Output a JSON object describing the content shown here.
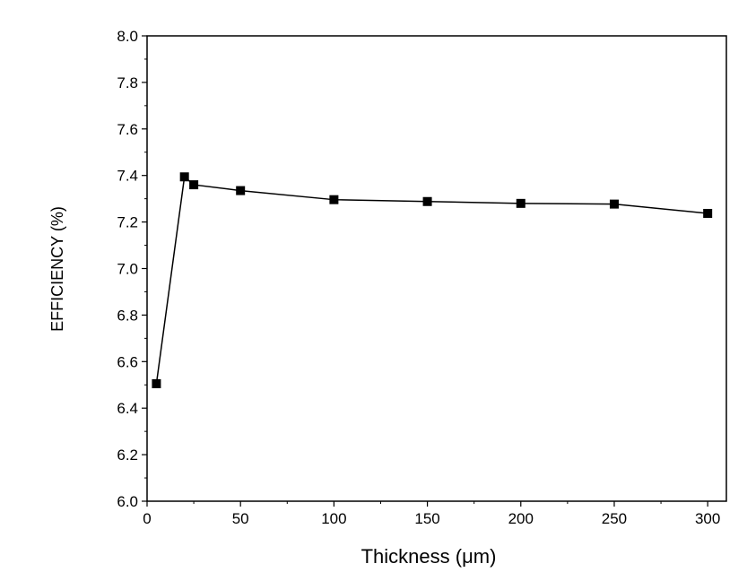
{
  "chart_data": {
    "type": "line",
    "title": "",
    "xlabel": "Thickness (μm)",
    "ylabel": "EFFICIENCY (%)",
    "xlim": [
      0,
      310
    ],
    "ylim": [
      6.0,
      8.0
    ],
    "xticks": [
      0,
      50,
      100,
      150,
      200,
      250,
      300
    ],
    "yticks": [
      "6.0",
      "6.2",
      "6.4",
      "6.6",
      "6.8",
      "7.0",
      "7.2",
      "7.4",
      "7.6",
      "7.8",
      "8.0"
    ],
    "grid": false,
    "marker": "square",
    "color": "#000000",
    "series": [
      {
        "name": "Efficiency",
        "x": [
          5,
          20,
          25,
          50,
          100,
          150,
          200,
          250,
          300
        ],
        "y": [
          6.505,
          7.394,
          7.36,
          7.335,
          7.296,
          7.288,
          7.28,
          7.277,
          7.237
        ]
      }
    ]
  }
}
